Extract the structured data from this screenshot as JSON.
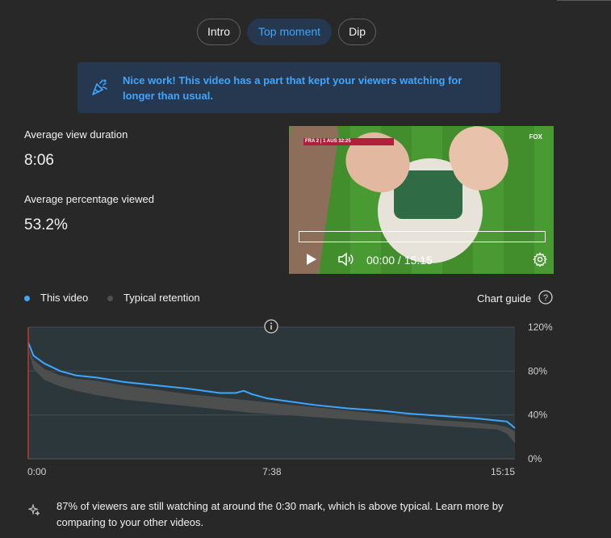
{
  "tabs": [
    {
      "label": "Intro"
    },
    {
      "label": "Top moment"
    },
    {
      "label": "Dip"
    }
  ],
  "banner": {
    "icon": "party-popper-icon",
    "text": "Nice work! This video has a part that kept your viewers watching for longer than usual."
  },
  "metrics": {
    "avg_view_duration_label": "Average view duration",
    "avg_view_duration_value": "8:06",
    "avg_percentage_label": "Average percentage viewed",
    "avg_percentage_value": "53.2%"
  },
  "video": {
    "time_display": "00:00 / 15:15",
    "score_text": "FRA 2 | 1 AUS 32:25",
    "broadcaster": "FOX"
  },
  "legend": {
    "this_video": "This video",
    "typical": "Typical retention",
    "chart_guide": "Chart guide"
  },
  "colors": {
    "this_video": "#3ea6ff",
    "typical": "#4f4f4f",
    "accent": "#3ea6ff",
    "banner_bg": "#263850"
  },
  "chart_data": {
    "type": "area",
    "x_tick_labels": [
      "0:00",
      "7:38",
      "15:15"
    ],
    "y_tick_labels": [
      "120%",
      "80%",
      "40%",
      "0%"
    ],
    "ylim": [
      0,
      120
    ],
    "xlim_seconds": [
      0,
      915
    ],
    "series": [
      {
        "name": "This video",
        "x_seconds": [
          0,
          10,
          30,
          60,
          90,
          130,
          180,
          240,
          300,
          360,
          390,
          405,
          420,
          450,
          480,
          540,
          600,
          660,
          720,
          780,
          840,
          880,
          900,
          915
        ],
        "values": [
          106,
          94,
          87,
          80,
          76,
          74,
          70,
          67,
          64,
          60,
          60,
          62,
          59,
          55,
          53,
          49,
          46,
          44,
          41,
          39,
          37,
          35,
          34,
          28
        ]
      },
      {
        "name": "Typical retention",
        "x_seconds": [
          0,
          10,
          30,
          60,
          90,
          130,
          180,
          240,
          300,
          360,
          420,
          480,
          540,
          600,
          660,
          720,
          780,
          840,
          880,
          900,
          915
        ],
        "upper": [
          100,
          90,
          82,
          76,
          73,
          71,
          67,
          63,
          59,
          56,
          53,
          50,
          47,
          44,
          41,
          38,
          35,
          33,
          31,
          29,
          25
        ],
        "lower": [
          100,
          82,
          72,
          66,
          62,
          58,
          54,
          51,
          48,
          45,
          42,
          40,
          38,
          36,
          34,
          32,
          30,
          28,
          27,
          23,
          14
        ]
      }
    ],
    "grid": true
  },
  "footer": {
    "icon": "sparkle-icon",
    "text": "87% of viewers are still watching at around the 0:30 mark, which is above typical. Learn more by comparing to your other videos."
  }
}
